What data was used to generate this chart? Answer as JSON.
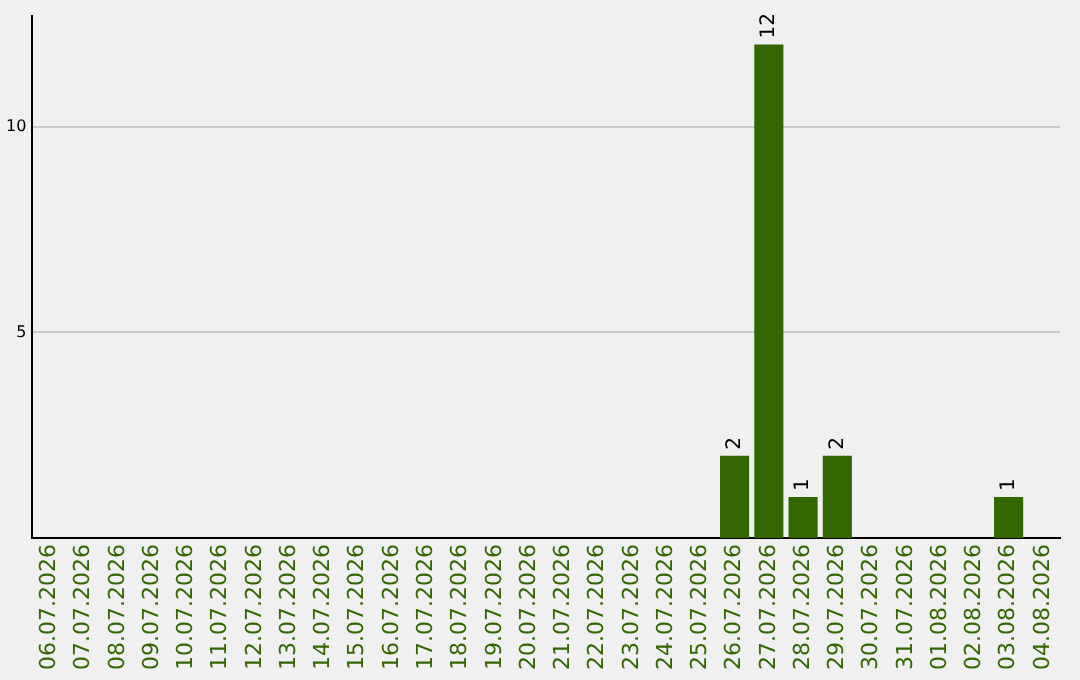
{
  "chart_data": {
    "type": "bar",
    "categories": [
      "06.07.2026",
      "07.07.2026",
      "08.07.2026",
      "09.07.2026",
      "10.07.2026",
      "11.07.2026",
      "12.07.2026",
      "13.07.2026",
      "14.07.2026",
      "15.07.2026",
      "16.07.2026",
      "17.07.2026",
      "18.07.2026",
      "19.07.2026",
      "20.07.2026",
      "21.07.2026",
      "22.07.2026",
      "23.07.2026",
      "24.07.2026",
      "25.07.2026",
      "26.07.2026",
      "27.07.2026",
      "28.07.2026",
      "29.07.2026",
      "30.07.2026",
      "31.07.2026",
      "01.08.2026",
      "02.08.2026",
      "03.08.2026",
      "04.08.2026"
    ],
    "values": [
      0,
      0,
      0,
      0,
      0,
      0,
      0,
      0,
      0,
      0,
      0,
      0,
      0,
      0,
      0,
      0,
      0,
      0,
      0,
      0,
      2,
      12,
      1,
      2,
      0,
      0,
      0,
      0,
      1,
      0
    ],
    "value_labels": [
      null,
      null,
      null,
      null,
      null,
      null,
      null,
      null,
      null,
      null,
      null,
      null,
      null,
      null,
      null,
      null,
      null,
      null,
      null,
      null,
      "2",
      "12",
      "1",
      "2",
      null,
      null,
      null,
      null,
      "1",
      null
    ],
    "color": "#336600",
    "ylim": [
      0,
      12.7
    ],
    "yticks": [
      5,
      10
    ],
    "grid": "y",
    "legend": false
  }
}
